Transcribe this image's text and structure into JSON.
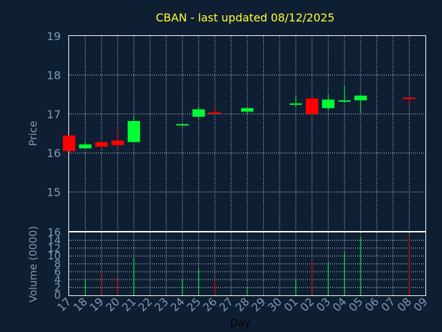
{
  "chart_data": {
    "type": "candlestick",
    "title": "CBAN - last updated 08/12/2025",
    "xlabel": "Day",
    "price_panel": {
      "ylabel": "Price",
      "ylim": [
        14,
        19
      ],
      "yticks": [
        15,
        16,
        17,
        18,
        19
      ]
    },
    "volume_panel": {
      "ylabel": "Volume (0000)",
      "ylim": [
        0,
        16
      ],
      "yticks": [
        0,
        2,
        4,
        6,
        8,
        10,
        12,
        14,
        16
      ]
    },
    "x_tick_labels": [
      "17",
      "18",
      "19",
      "20",
      "21",
      "22",
      "23",
      "24",
      "25",
      "26",
      "27",
      "28",
      "29",
      "30",
      "01",
      "02",
      "03",
      "04",
      "05",
      "06",
      "07",
      "08",
      "09"
    ],
    "colors": {
      "up": "#00ff33",
      "down": "#ff0000"
    },
    "candles": [
      {
        "x": "17",
        "open": 16.45,
        "high": 16.45,
        "low": 16.05,
        "close": 16.05,
        "volume": 0
      },
      {
        "x": "18",
        "open": 16.12,
        "high": 16.28,
        "low": 16.12,
        "close": 16.22,
        "volume": 4
      },
      {
        "x": "19",
        "open": 16.28,
        "high": 16.28,
        "low": 16.14,
        "close": 16.16,
        "volume": 6
      },
      {
        "x": "20",
        "open": 16.32,
        "high": 16.62,
        "low": 16.2,
        "close": 16.2,
        "volume": 4.8
      },
      {
        "x": "21",
        "open": 16.28,
        "high": 16.95,
        "low": 16.28,
        "close": 16.82,
        "volume": 9.5
      },
      {
        "x": "24",
        "open": 16.72,
        "high": 16.76,
        "low": 16.72,
        "close": 16.74,
        "volume": 4
      },
      {
        "x": "25",
        "open": 16.93,
        "high": 17.18,
        "low": 16.88,
        "close": 17.12,
        "volume": 6.8
      },
      {
        "x": "26",
        "open": 17.04,
        "high": 17.22,
        "low": 17.0,
        "close": 17.02,
        "volume": 4
      },
      {
        "x": "28",
        "open": 17.06,
        "high": 17.17,
        "low": 17.03,
        "close": 17.15,
        "volume": 2
      },
      {
        "x": "01",
        "open": 17.25,
        "high": 17.47,
        "low": 17.18,
        "close": 17.27,
        "volume": 4
      },
      {
        "x": "02",
        "open": 17.4,
        "high": 17.4,
        "low": 16.97,
        "close": 17.0,
        "volume": 8.8
      },
      {
        "x": "03",
        "open": 17.15,
        "high": 17.5,
        "low": 17.1,
        "close": 17.37,
        "volume": 8.5
      },
      {
        "x": "04",
        "open": 17.32,
        "high": 17.72,
        "low": 17.3,
        "close": 17.35,
        "volume": 11
      },
      {
        "x": "05",
        "open": 17.35,
        "high": 17.48,
        "low": 17.03,
        "close": 17.47,
        "volume": 14.8
      },
      {
        "x": "08",
        "open": 17.42,
        "high": 17.46,
        "low": 17.2,
        "close": 17.4,
        "volume": 15.2
      }
    ]
  }
}
